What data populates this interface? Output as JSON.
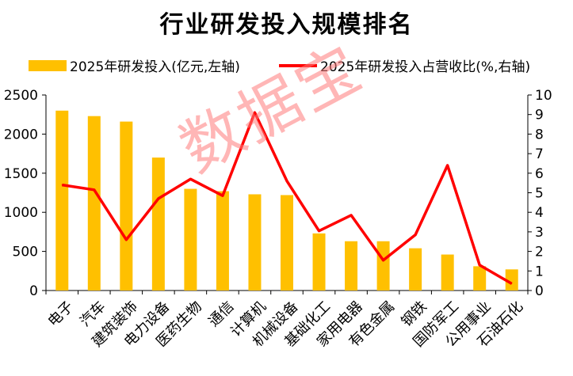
{
  "chart_data": {
    "type": "bar",
    "title": "行业研发投入规模排名",
    "categories": [
      "电子",
      "汽车",
      "建筑装饰",
      "电力设备",
      "医药生物",
      "通信",
      "计算机",
      "机械设备",
      "基础化工",
      "家用电器",
      "有色金属",
      "钢铁",
      "国防军工",
      "公用事业",
      "石油石化"
    ],
    "series": [
      {
        "name": "2025年研发投入(亿元,左轴)",
        "type": "bar",
        "axis": "left",
        "values": [
          2300,
          2230,
          2160,
          1700,
          1300,
          1270,
          1230,
          1220,
          730,
          630,
          630,
          540,
          460,
          310,
          270
        ]
      },
      {
        "name": "2025年研发投入占营收比(%,右轴)",
        "type": "line",
        "axis": "right",
        "values": [
          5.4,
          5.15,
          2.6,
          4.7,
          5.7,
          4.85,
          9.1,
          5.6,
          3.05,
          3.85,
          1.55,
          2.85,
          6.4,
          1.3,
          0.35
        ]
      }
    ],
    "y_left": {
      "min": 0,
      "max": 2500,
      "ticks": [
        "0",
        "500",
        "1000",
        "1500",
        "2000",
        "2500"
      ]
    },
    "y_right": {
      "min": 0,
      "max": 10,
      "ticks": [
        "0",
        "1",
        "2",
        "3",
        "4",
        "5",
        "6",
        "7",
        "8",
        "9",
        "10"
      ]
    },
    "legend_position": "top",
    "grid": false,
    "colors": {
      "bar": "#FFC000",
      "line": "#FF0000"
    }
  },
  "watermark": "数据宝"
}
